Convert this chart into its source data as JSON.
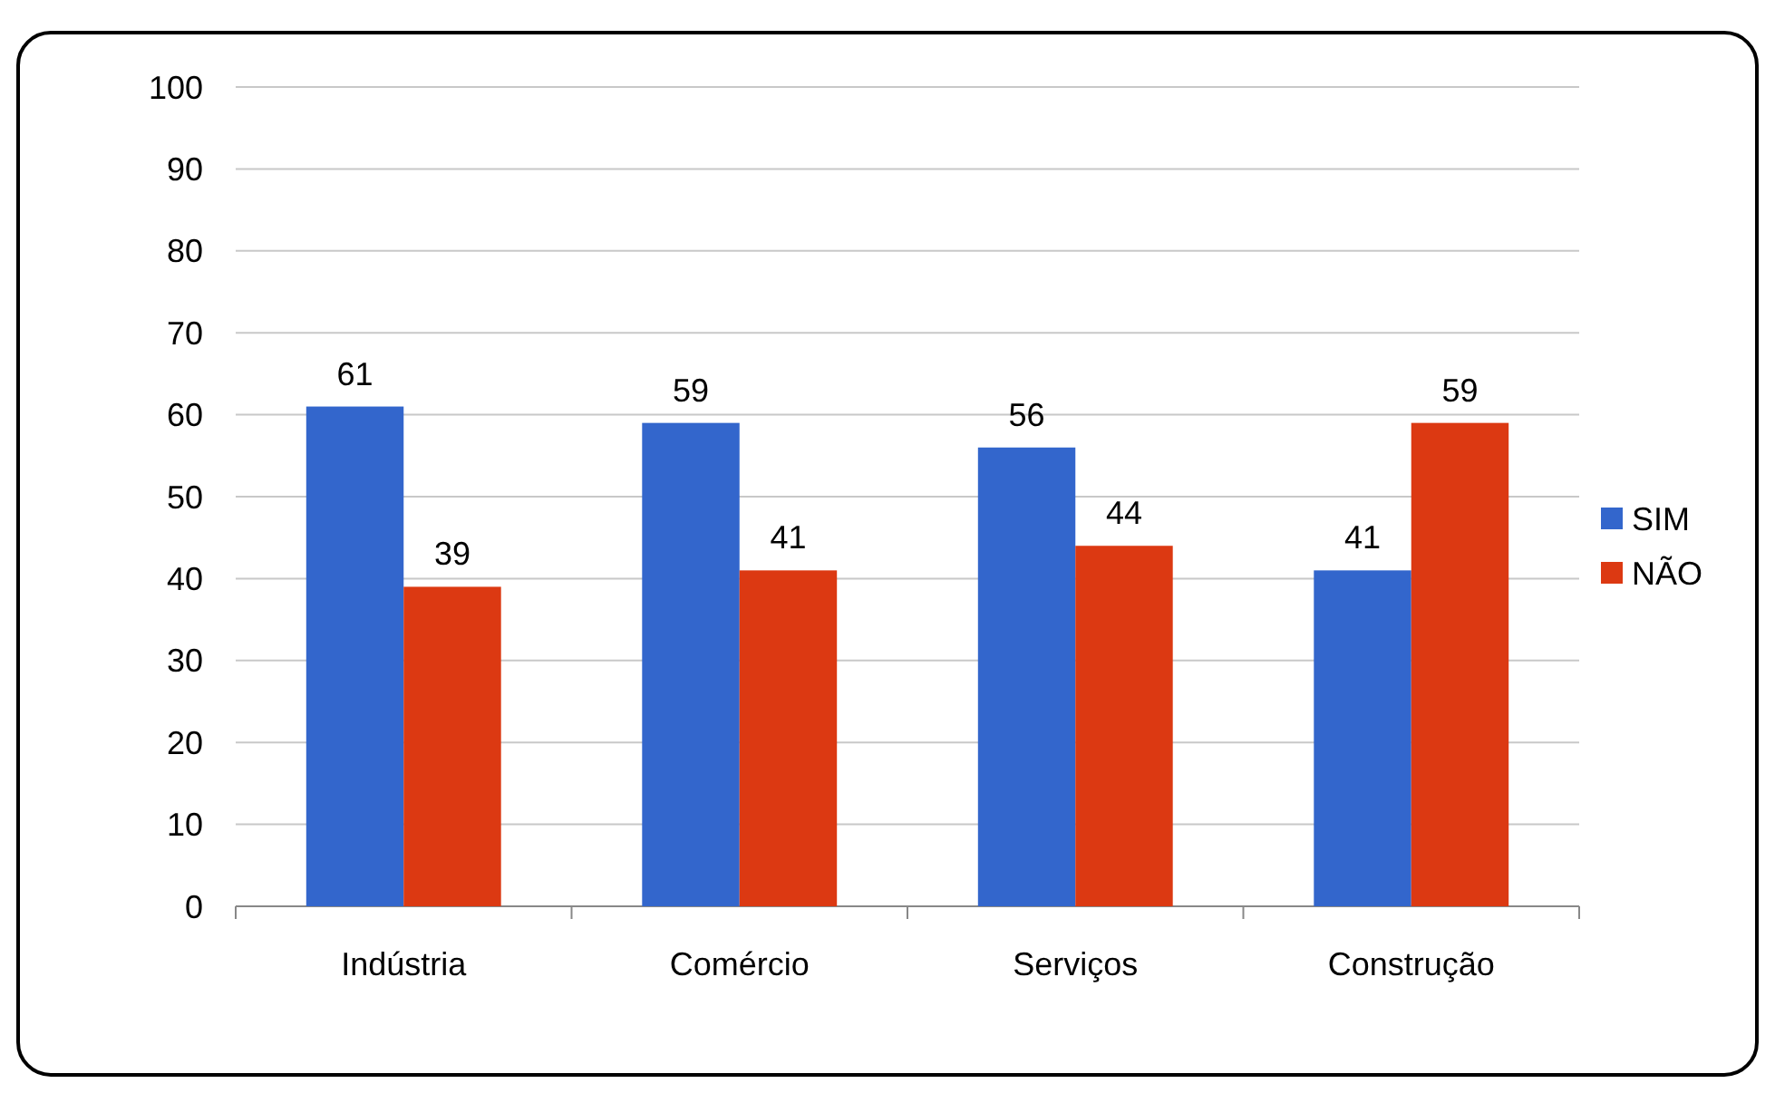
{
  "chart_data": {
    "type": "bar",
    "categories": [
      "Indústria",
      "Comércio",
      "Serviços",
      "Construção"
    ],
    "series": [
      {
        "name": "SIM",
        "color": "#3366cc",
        "values": [
          61,
          59,
          56,
          41
        ]
      },
      {
        "name": "NÃO",
        "color": "#dc3912",
        "values": [
          39,
          41,
          44,
          59
        ]
      }
    ],
    "ylim": [
      0,
      100
    ],
    "yticks": [
      0,
      10,
      20,
      30,
      40,
      50,
      60,
      70,
      80,
      90,
      100
    ],
    "grid": "y",
    "legend": "right",
    "data_labels": true
  }
}
